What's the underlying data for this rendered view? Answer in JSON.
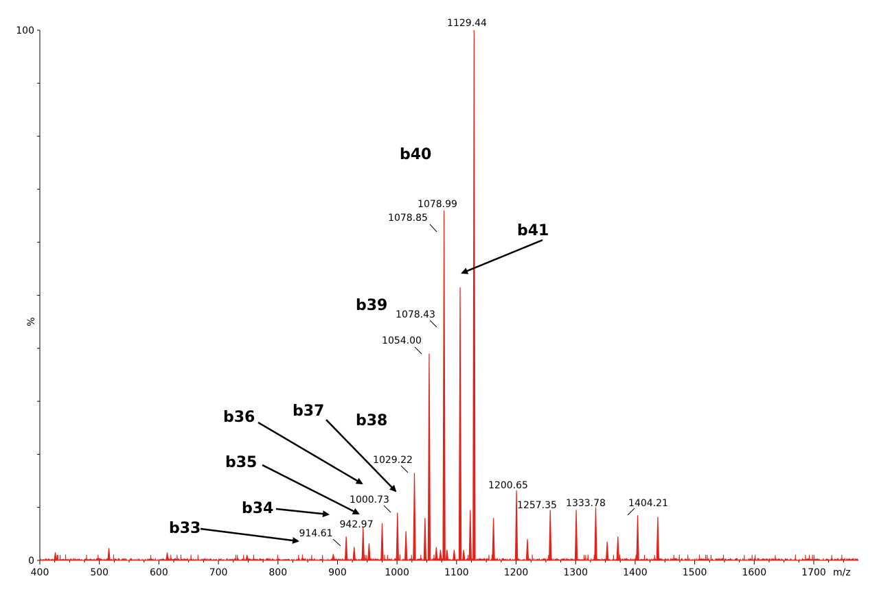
{
  "chart_data": {
    "type": "line",
    "title": "",
    "xlabel": "m/z",
    "ylabel": "%",
    "xlim": [
      400,
      1775
    ],
    "ylim": [
      0,
      100
    ],
    "x_ticks": [
      "400",
      "500",
      "600",
      "700",
      "800",
      "900",
      "1000",
      "1100",
      "1200",
      "1300",
      "1400",
      "1500",
      "1600",
      "1700"
    ],
    "y_ticks": [
      "0",
      "100"
    ],
    "grid": false,
    "series": [
      {
        "color": "#e2231a",
        "peaks": [
          {
            "x": 426,
            "y": 1.5
          },
          {
            "x": 516,
            "y": 2.3
          },
          {
            "x": 614,
            "y": 1.5
          },
          {
            "x": 748,
            "y": 1.0
          },
          {
            "x": 893,
            "y": 1.2
          },
          {
            "x": 914.61,
            "y": 4.5
          },
          {
            "x": 928,
            "y": 2.5
          },
          {
            "x": 942.97,
            "y": 6.2
          },
          {
            "x": 953,
            "y": 3.2
          },
          {
            "x": 975,
            "y": 7.0
          },
          {
            "x": 1000.73,
            "y": 9.0
          },
          {
            "x": 1015,
            "y": 5.5
          },
          {
            "x": 1029.22,
            "y": 16.5
          },
          {
            "x": 1047,
            "y": 8.0
          },
          {
            "x": 1054.0,
            "y": 39.0
          },
          {
            "x": 1066,
            "y": 2.5
          },
          {
            "x": 1073,
            "y": 2.0
          },
          {
            "x": 1078.99,
            "y": 66.0
          },
          {
            "x": 1084,
            "y": 2.0
          },
          {
            "x": 1096,
            "y": 2.0
          },
          {
            "x": 1106,
            "y": 51.5
          },
          {
            "x": 1112,
            "y": 2.0
          },
          {
            "x": 1123,
            "y": 9.5
          },
          {
            "x": 1129.44,
            "y": 100.0
          },
          {
            "x": 1162,
            "y": 8.0
          },
          {
            "x": 1200.65,
            "y": 13.2
          },
          {
            "x": 1219,
            "y": 4.0
          },
          {
            "x": 1257.35,
            "y": 9.5
          },
          {
            "x": 1301,
            "y": 9.5
          },
          {
            "x": 1333.78,
            "y": 10.0
          },
          {
            "x": 1353,
            "y": 3.5
          },
          {
            "x": 1371,
            "y": 4.5
          },
          {
            "x": 1404.21,
            "y": 8.5
          },
          {
            "x": 1438,
            "y": 8.2
          }
        ]
      }
    ],
    "peak_labels": [
      {
        "text": "1129.44",
        "x": 1129.44,
        "y": 100.0
      },
      {
        "text": "1078.99",
        "x": 1078.99,
        "y": 66.0
      },
      {
        "text": "1078.85",
        "x": 1078.85,
        "y": 62.5
      },
      {
        "text": "1078.43",
        "x": 1078.43,
        "y": 44.5
      },
      {
        "text": "1054.00",
        "x": 1054.0,
        "y": 39.0
      },
      {
        "text": "1029.22",
        "x": 1029.22,
        "y": 16.5
      },
      {
        "text": "1000.73",
        "x": 1000.73,
        "y": 9.0
      },
      {
        "text": "942.97",
        "x": 942.97,
        "y": 6.2
      },
      {
        "text": "914.61",
        "x": 914.61,
        "y": 4.5
      },
      {
        "text": "1200.65",
        "x": 1200.65,
        "y": 13.2
      },
      {
        "text": "1257.35",
        "x": 1257.35,
        "y": 9.5
      },
      {
        "text": "1333.78",
        "x": 1333.78,
        "y": 10.0
      },
      {
        "text": "1404.21",
        "x": 1404.21,
        "y": 8.5
      }
    ],
    "annotations": [
      {
        "text": "b33"
      },
      {
        "text": "b34"
      },
      {
        "text": "b35"
      },
      {
        "text": "b36"
      },
      {
        "text": "b37"
      },
      {
        "text": "b38"
      },
      {
        "text": "b39"
      },
      {
        "text": "b40"
      },
      {
        "text": "b41"
      }
    ]
  }
}
